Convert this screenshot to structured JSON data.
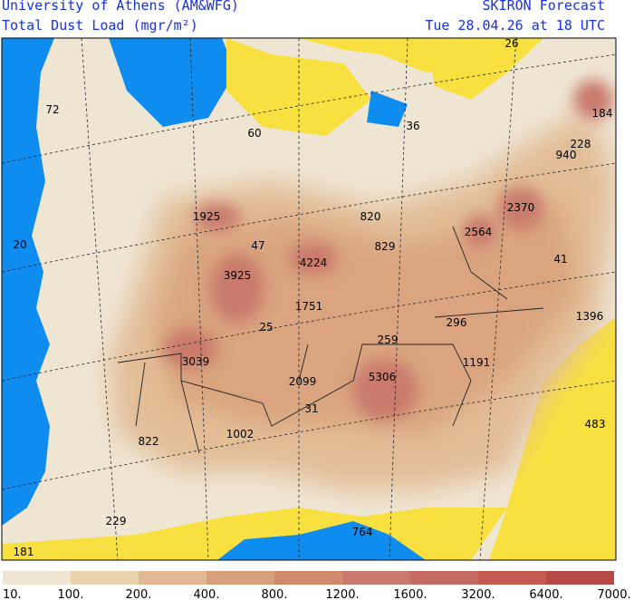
{
  "header": {
    "institution": "University of Athens (AM&WFG)",
    "product": "Total Dust Load (mgr/m²)",
    "model": "SKIRON Forecast",
    "date": "Tue 28.04.26 at 18 UTC"
  },
  "map": {
    "labels": [
      "26",
      "184",
      "228",
      "940",
      "72",
      "60",
      "36",
      "1925",
      "820",
      "2370",
      "2564",
      "20",
      "47",
      "829",
      "41",
      "3925",
      "4224",
      "1751",
      "1396",
      "25",
      "296",
      "259",
      "1191",
      "3039",
      "2099",
      "5306",
      "31",
      "483",
      "822",
      "1002",
      "229",
      "764",
      "181"
    ]
  },
  "colorbar": {
    "labels": [
      "10.",
      "100.",
      "200.",
      "400.",
      "800.",
      "1200.",
      "1600.",
      "3200.",
      "6400.",
      "7000."
    ],
    "colors": [
      "#efe5d3",
      "#e7d2ad",
      "#e1b893",
      "#d7a07c",
      "#d08a6b",
      "#c97a6c",
      "#c56a5e",
      "#c65a50",
      "#b74a44"
    ]
  }
}
